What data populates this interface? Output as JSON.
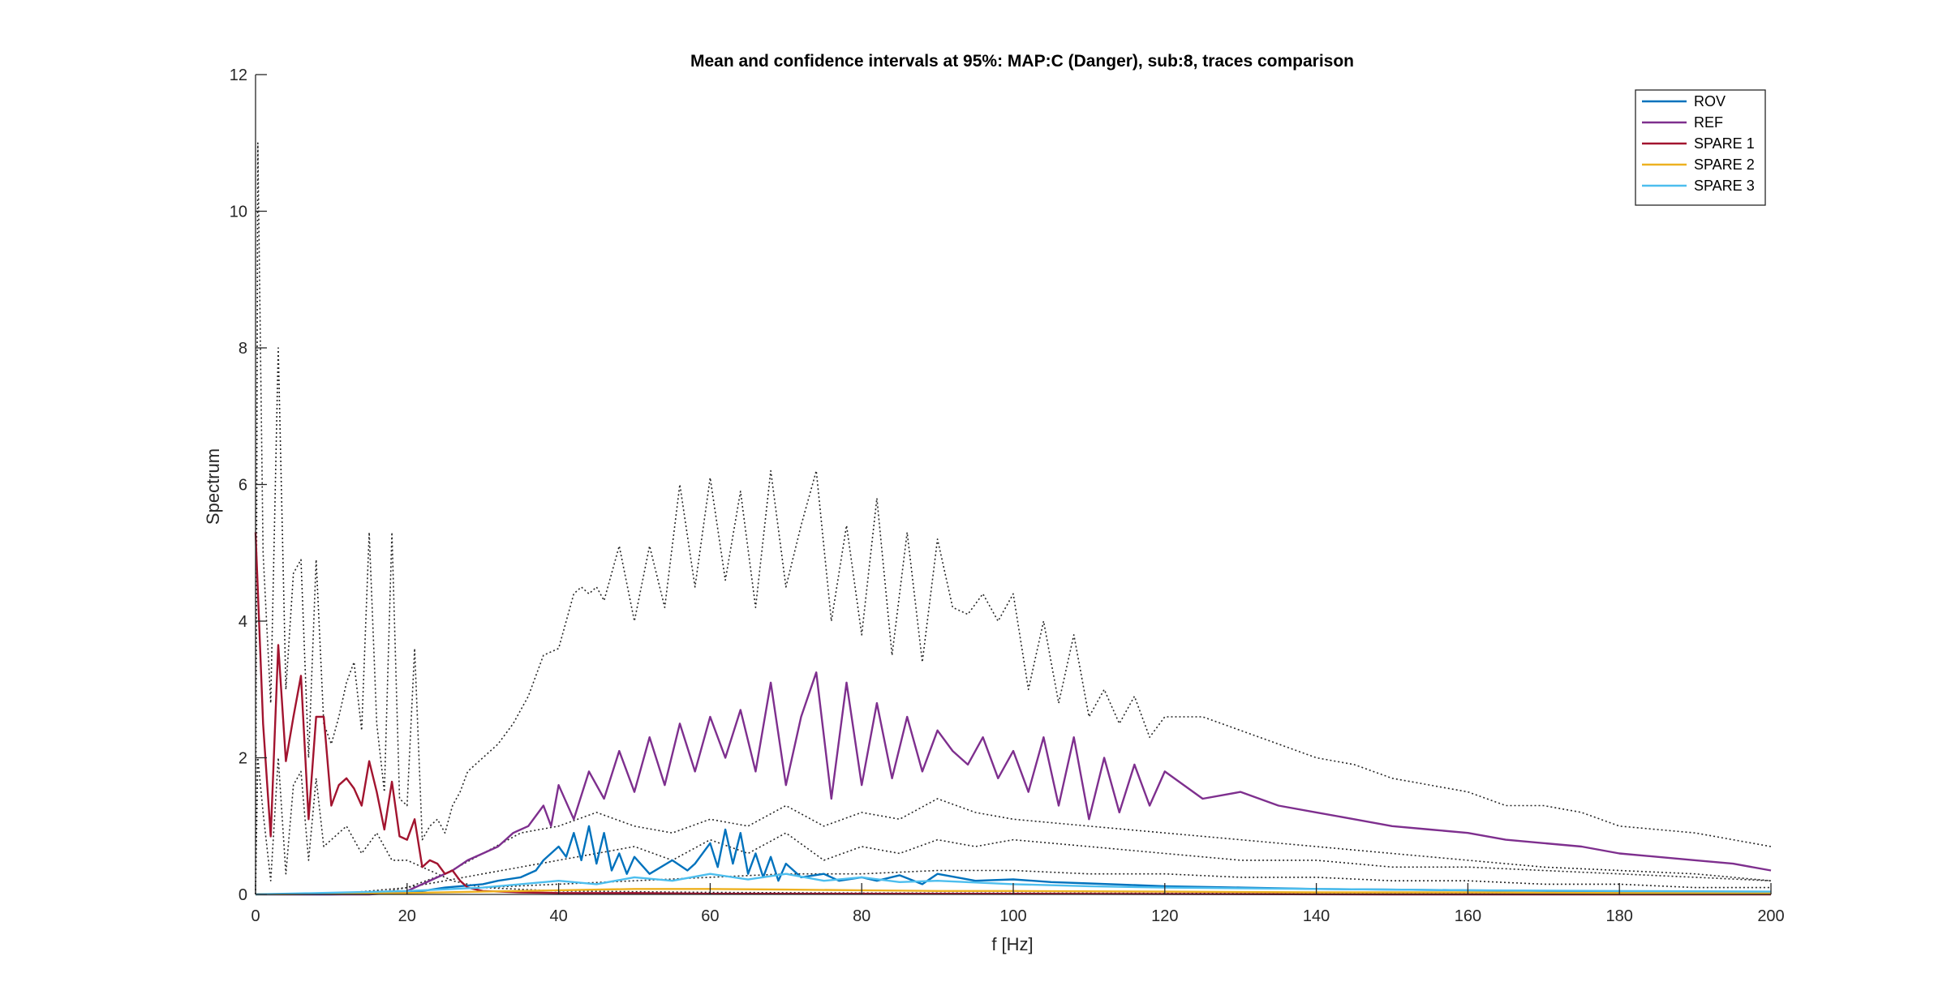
{
  "chart_data": {
    "type": "line",
    "title": "Mean and confidence intervals at 95%: MAP:C (Danger), sub:8, traces comparison",
    "xlabel": "f [Hz]",
    "ylabel": "Spectrum",
    "xlim": [
      0,
      200
    ],
    "ylim": [
      0,
      12
    ],
    "xticks": [
      "0",
      "20",
      "40",
      "60",
      "80",
      "100",
      "120",
      "140",
      "160",
      "180",
      "200"
    ],
    "yticks": [
      "0",
      "2",
      "4",
      "6",
      "8",
      "10",
      "12"
    ],
    "grid": false,
    "legend_position": "top-right",
    "ci_style": {
      "color": "#262626",
      "dash": "dotted"
    },
    "series": [
      {
        "name": "ROV",
        "color": "#0072BD",
        "x": [
          0,
          10,
          15,
          20,
          22,
          25,
          27,
          30,
          32,
          35,
          37,
          38,
          40,
          41,
          42,
          43,
          44,
          45,
          46,
          47,
          48,
          49,
          50,
          52,
          55,
          57,
          58,
          60,
          61,
          62,
          63,
          64,
          65,
          66,
          67,
          68,
          69,
          70,
          72,
          75,
          77,
          80,
          82,
          85,
          88,
          90,
          95,
          100,
          105,
          110,
          115,
          120,
          130,
          140,
          150,
          160,
          170,
          180,
          190,
          200
        ],
        "values": [
          0.0,
          0.0,
          0.01,
          0.02,
          0.05,
          0.1,
          0.12,
          0.15,
          0.2,
          0.25,
          0.35,
          0.5,
          0.7,
          0.55,
          0.9,
          0.5,
          1.0,
          0.45,
          0.9,
          0.35,
          0.6,
          0.3,
          0.55,
          0.3,
          0.5,
          0.35,
          0.45,
          0.75,
          0.4,
          0.95,
          0.45,
          0.9,
          0.3,
          0.6,
          0.25,
          0.55,
          0.2,
          0.45,
          0.25,
          0.3,
          0.2,
          0.25,
          0.2,
          0.28,
          0.15,
          0.3,
          0.2,
          0.22,
          0.18,
          0.16,
          0.14,
          0.12,
          0.1,
          0.08,
          0.07,
          0.06,
          0.05,
          0.04,
          0.04,
          0.03
        ]
      },
      {
        "name": "REF",
        "color": "#7E2F8E",
        "x": [
          0,
          15,
          18,
          20,
          22,
          24,
          26,
          28,
          30,
          32,
          34,
          36,
          38,
          39,
          40,
          42,
          44,
          46,
          48,
          50,
          52,
          54,
          56,
          58,
          60,
          62,
          64,
          66,
          68,
          70,
          72,
          74,
          76,
          78,
          80,
          82,
          84,
          86,
          88,
          90,
          92,
          94,
          96,
          98,
          100,
          102,
          104,
          106,
          108,
          110,
          112,
          114,
          116,
          118,
          120,
          125,
          130,
          135,
          140,
          145,
          150,
          155,
          160,
          165,
          170,
          175,
          180,
          185,
          190,
          195,
          200
        ],
        "values": [
          0.0,
          0.0,
          0.02,
          0.05,
          0.15,
          0.25,
          0.35,
          0.5,
          0.6,
          0.7,
          0.9,
          1.0,
          1.3,
          1.0,
          1.6,
          1.1,
          1.8,
          1.4,
          2.1,
          1.5,
          2.3,
          1.6,
          2.5,
          1.8,
          2.6,
          2.0,
          2.7,
          1.8,
          3.1,
          1.6,
          2.6,
          3.25,
          1.4,
          3.1,
          1.6,
          2.8,
          1.7,
          2.6,
          1.8,
          2.4,
          2.1,
          1.9,
          2.3,
          1.7,
          2.1,
          1.5,
          2.3,
          1.3,
          2.3,
          1.1,
          2.0,
          1.2,
          1.9,
          1.3,
          1.8,
          1.4,
          1.5,
          1.3,
          1.2,
          1.1,
          1.0,
          0.95,
          0.9,
          0.8,
          0.75,
          0.7,
          0.6,
          0.55,
          0.5,
          0.45,
          0.35
        ]
      },
      {
        "name": "SPARE 1",
        "color": "#A2142F",
        "x": [
          0,
          1,
          2,
          3,
          4,
          5,
          6,
          7,
          8,
          9,
          10,
          11,
          12,
          13,
          14,
          15,
          16,
          17,
          18,
          19,
          20,
          21,
          22,
          23,
          24,
          25,
          26,
          27,
          28,
          30,
          35,
          40,
          50,
          60,
          80,
          100,
          150,
          200
        ],
        "values": [
          5.3,
          2.5,
          0.85,
          3.65,
          1.95,
          2.6,
          3.2,
          1.1,
          2.6,
          2.6,
          1.3,
          1.6,
          1.7,
          1.55,
          1.3,
          1.95,
          1.5,
          0.95,
          1.65,
          0.85,
          0.8,
          1.1,
          0.4,
          0.5,
          0.45,
          0.3,
          0.35,
          0.2,
          0.1,
          0.05,
          0.03,
          0.02,
          0.02,
          0.01,
          0.01,
          0.01,
          0.0,
          0.0
        ]
      },
      {
        "name": "SPARE 2",
        "color": "#EDB120",
        "x": [
          0,
          20,
          30,
          40,
          50,
          60,
          70,
          80,
          90,
          100,
          120,
          140,
          160,
          180,
          200
        ],
        "values": [
          0.0,
          0.02,
          0.04,
          0.06,
          0.08,
          0.08,
          0.07,
          0.06,
          0.05,
          0.05,
          0.04,
          0.03,
          0.03,
          0.02,
          0.02
        ]
      },
      {
        "name": "SPARE 3",
        "color": "#4DBEEE",
        "x": [
          0,
          20,
          30,
          40,
          45,
          50,
          55,
          60,
          65,
          70,
          75,
          80,
          85,
          90,
          100,
          110,
          120,
          140,
          160,
          180,
          200
        ],
        "values": [
          0.0,
          0.05,
          0.1,
          0.2,
          0.15,
          0.25,
          0.2,
          0.3,
          0.22,
          0.3,
          0.2,
          0.25,
          0.18,
          0.2,
          0.15,
          0.12,
          0.1,
          0.08,
          0.06,
          0.05,
          0.04
        ]
      }
    ],
    "confidence_bounds": [
      {
        "x": [
          0,
          0.3,
          1,
          2,
          3,
          4,
          5,
          6,
          7,
          8,
          9,
          10,
          11,
          12,
          13,
          14,
          15,
          16,
          17,
          18,
          19,
          20,
          21,
          22,
          23,
          24,
          25,
          26,
          27,
          28,
          30,
          32,
          34,
          36,
          38,
          40,
          42,
          43,
          44,
          45,
          46,
          48,
          50,
          52,
          54,
          56,
          58,
          60,
          62,
          64,
          66,
          68,
          70,
          72,
          74,
          76,
          78,
          80,
          82,
          84,
          86,
          88,
          90,
          92,
          94,
          96,
          98,
          100,
          102,
          104,
          106,
          108,
          110,
          112,
          114,
          116,
          118,
          120,
          125,
          130,
          135,
          140,
          145,
          150,
          155,
          160,
          165,
          170,
          175,
          180,
          185,
          190,
          195,
          200
        ],
        "values": [
          0,
          11.0,
          5.0,
          2.8,
          8.0,
          3.0,
          4.7,
          4.9,
          2.0,
          4.9,
          2.5,
          2.2,
          2.6,
          3.1,
          3.4,
          2.4,
          5.3,
          2.5,
          1.5,
          5.3,
          1.4,
          1.3,
          3.6,
          0.8,
          1.0,
          1.1,
          0.9,
          1.3,
          1.5,
          1.8,
          2.0,
          2.2,
          2.5,
          2.9,
          3.5,
          3.6,
          4.4,
          4.5,
          4.4,
          4.5,
          4.3,
          5.1,
          4.0,
          5.1,
          4.2,
          6.0,
          4.5,
          6.1,
          4.6,
          5.9,
          4.2,
          6.2,
          4.5,
          5.4,
          6.2,
          4.0,
          5.4,
          3.8,
          5.8,
          3.5,
          5.3,
          3.4,
          5.2,
          4.2,
          4.1,
          4.4,
          4.0,
          4.4,
          3.0,
          4.0,
          2.8,
          3.8,
          2.6,
          3.0,
          2.5,
          2.9,
          2.3,
          2.6,
          2.6,
          2.4,
          2.2,
          2.0,
          1.9,
          1.7,
          1.6,
          1.5,
          1.3,
          1.3,
          1.2,
          1.0,
          0.95,
          0.9,
          0.8,
          0.7
        ]
      },
      {
        "x": [
          0,
          5,
          10,
          15,
          20,
          25,
          30,
          35,
          40,
          45,
          50,
          55,
          60,
          65,
          70,
          75,
          80,
          85,
          90,
          95,
          100,
          110,
          120,
          130,
          140,
          150,
          160,
          170,
          180,
          190,
          200
        ],
        "values": [
          0,
          0.0,
          0.0,
          0.0,
          0.1,
          0.3,
          0.6,
          0.9,
          1.0,
          1.2,
          1.0,
          0.9,
          1.1,
          1.0,
          1.3,
          1.0,
          1.2,
          1.1,
          1.4,
          1.2,
          1.1,
          1.0,
          0.9,
          0.8,
          0.7,
          0.6,
          0.5,
          0.4,
          0.35,
          0.3,
          0.2
        ]
      },
      {
        "x": [
          0,
          5,
          10,
          20,
          25,
          30,
          35,
          40,
          45,
          50,
          55,
          60,
          65,
          70,
          75,
          80,
          85,
          90,
          95,
          100,
          110,
          120,
          130,
          140,
          150,
          160,
          170,
          180,
          190,
          200
        ],
        "values": [
          0,
          0.0,
          0.0,
          0.1,
          0.2,
          0.3,
          0.4,
          0.5,
          0.6,
          0.7,
          0.5,
          0.8,
          0.6,
          0.9,
          0.5,
          0.7,
          0.6,
          0.8,
          0.7,
          0.8,
          0.7,
          0.6,
          0.5,
          0.5,
          0.4,
          0.4,
          0.35,
          0.3,
          0.25,
          0.2
        ]
      },
      {
        "x": [
          0,
          5,
          10,
          20,
          30,
          40,
          50,
          60,
          70,
          80,
          90,
          100,
          110,
          120,
          130,
          140,
          150,
          160,
          170,
          180,
          190,
          200
        ],
        "values": [
          0,
          0.0,
          0.0,
          0.05,
          0.1,
          0.15,
          0.2,
          0.25,
          0.3,
          0.3,
          0.35,
          0.35,
          0.3,
          0.3,
          0.25,
          0.25,
          0.2,
          0.2,
          0.15,
          0.15,
          0.1,
          0.1
        ]
      },
      {
        "x": [
          0,
          0.3,
          1,
          2,
          3,
          4,
          5,
          6,
          7,
          8,
          9,
          10,
          12,
          14,
          16,
          18,
          20,
          22,
          24,
          26,
          28,
          30,
          40,
          60,
          80,
          100,
          150,
          200
        ],
        "values": [
          0,
          2.0,
          1.2,
          0.2,
          2.0,
          0.3,
          1.6,
          1.8,
          0.5,
          1.7,
          0.7,
          0.8,
          1.0,
          0.6,
          0.9,
          0.5,
          0.5,
          0.4,
          0.3,
          0.2,
          0.15,
          0.1,
          0.05,
          0.03,
          0.02,
          0.02,
          0.01,
          0.01
        ]
      }
    ]
  }
}
